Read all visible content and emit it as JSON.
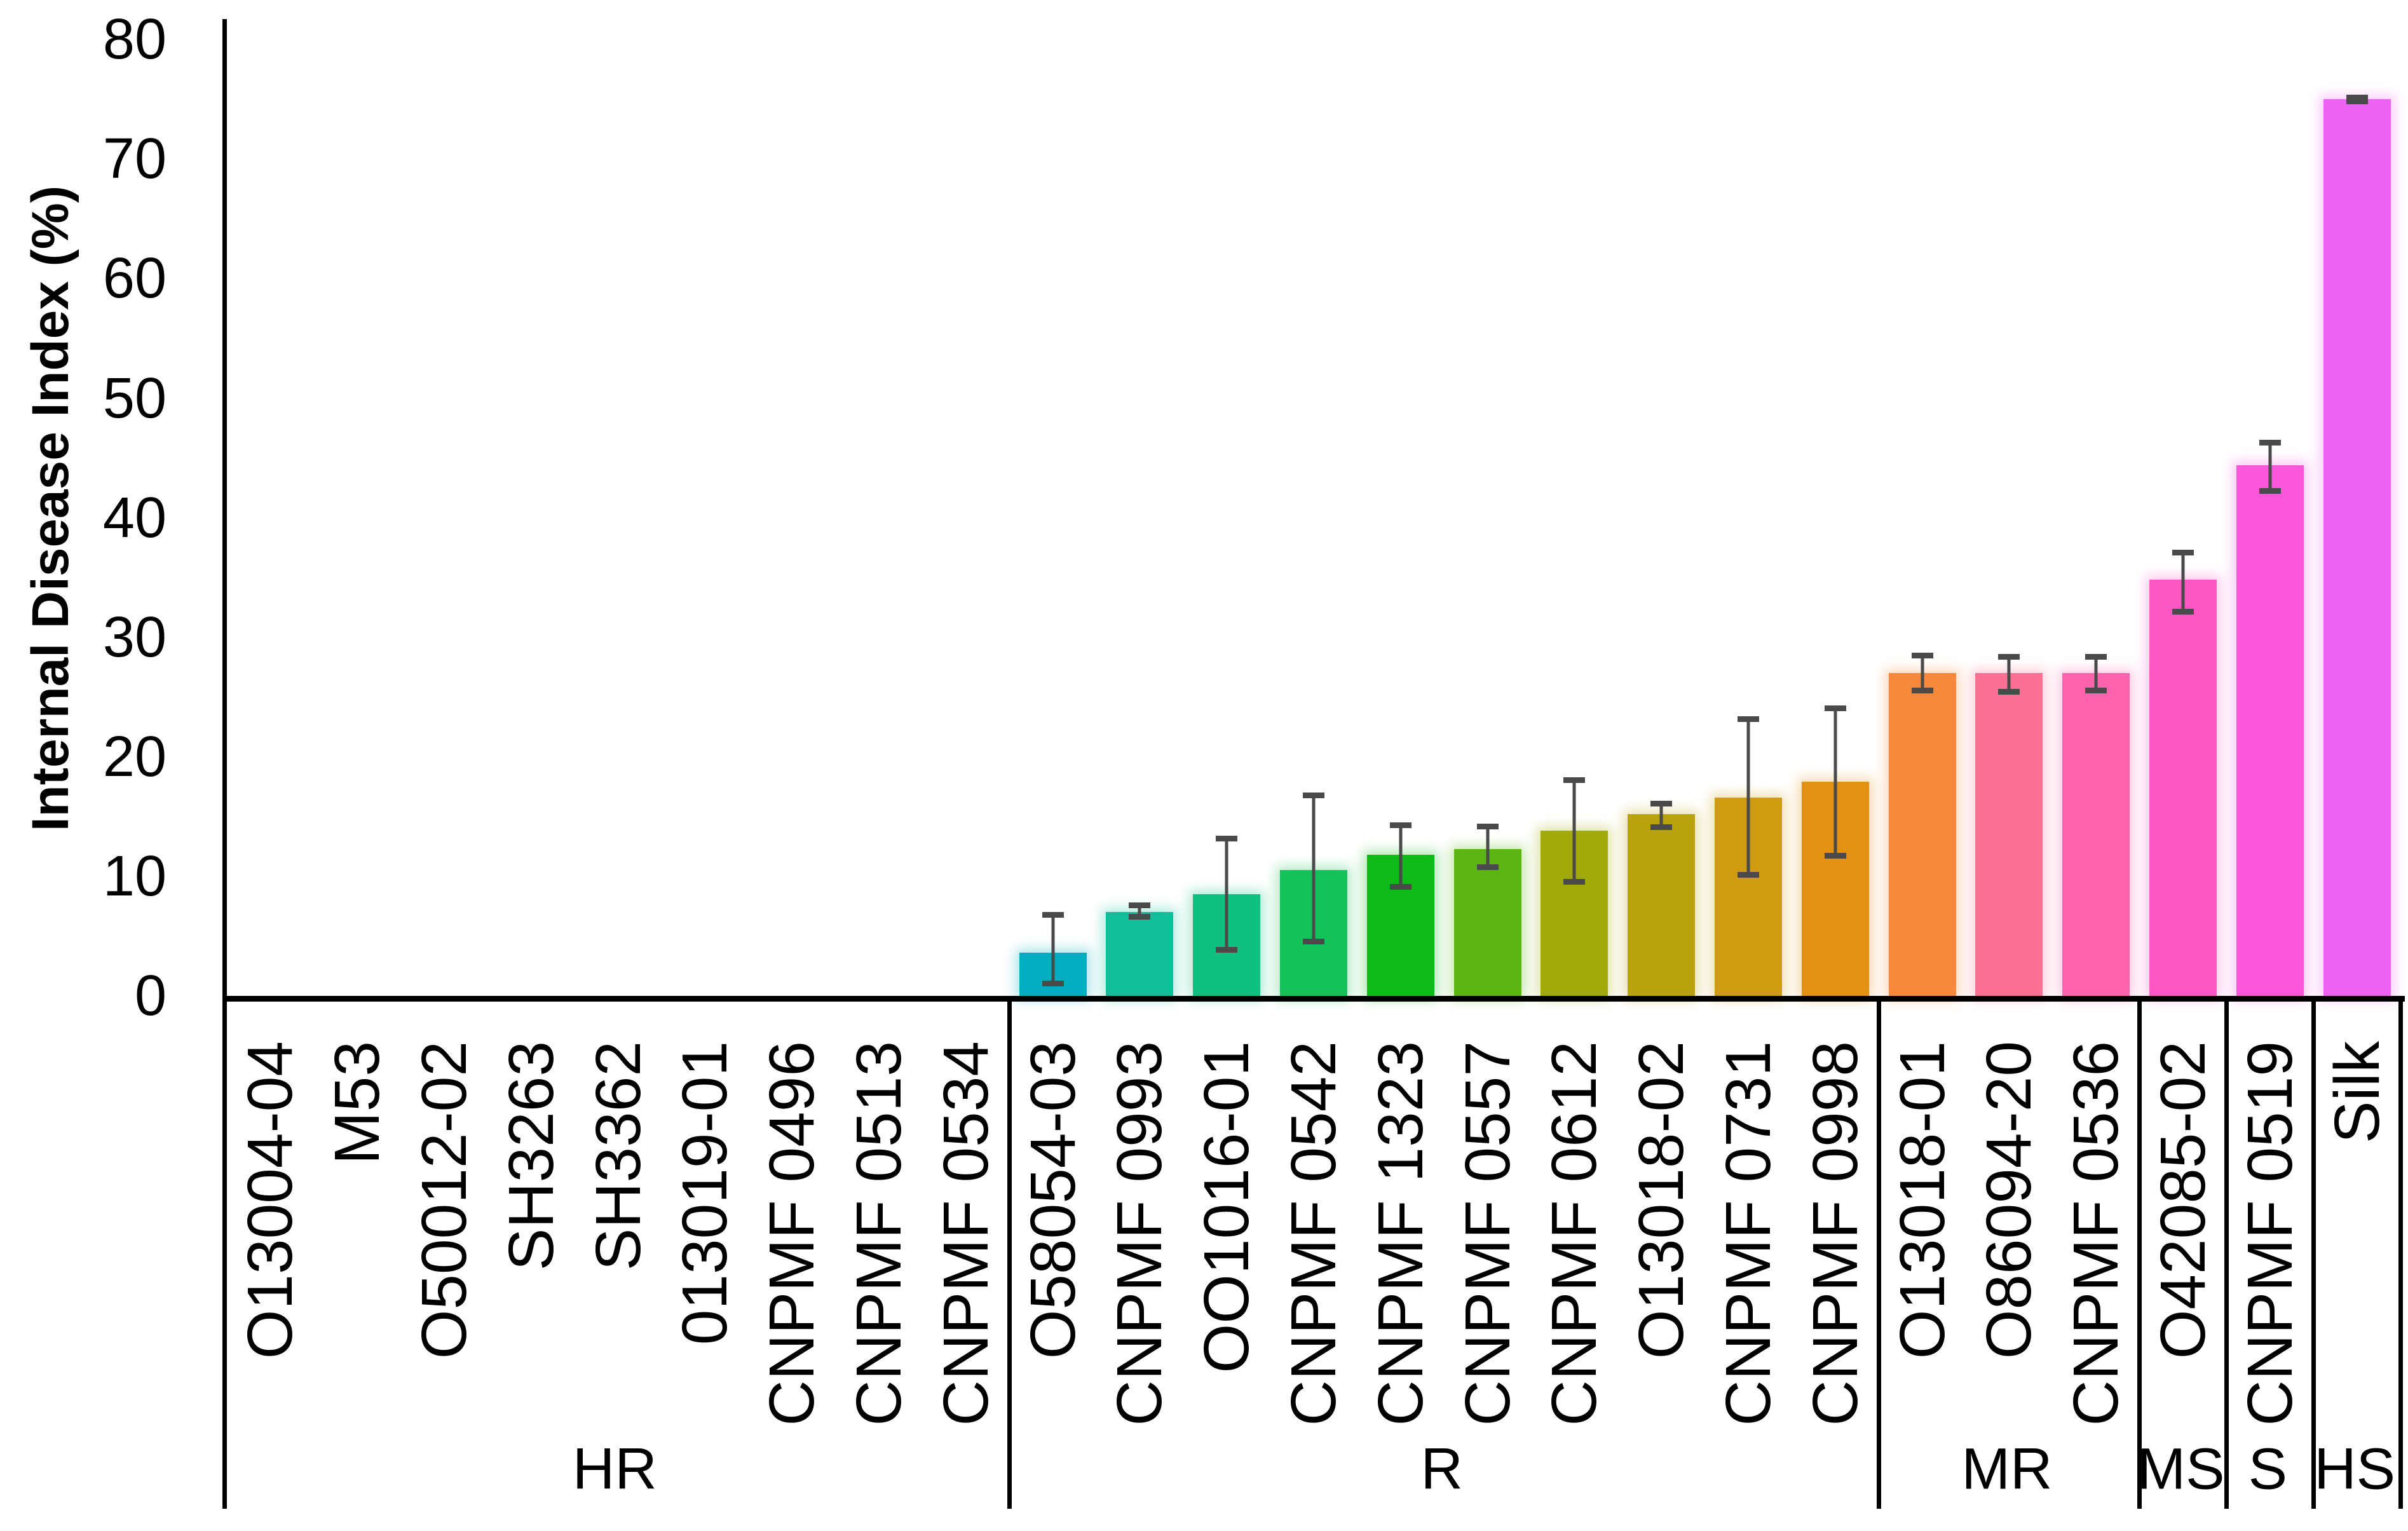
{
  "chart_data": {
    "type": "bar",
    "title": "",
    "ylabel": "Internal Disease Index (%)",
    "xlabel": "",
    "ylim": [
      0,
      80
    ],
    "yticks": [
      0,
      10,
      20,
      30,
      40,
      50,
      60,
      70,
      80
    ],
    "grid": false,
    "legend_position": "none",
    "background_color": "#ffffff",
    "axis_color": "#000000",
    "error_bar_color": "#4a4a4a",
    "categories": [
      "O13004-04",
      "M53",
      "O50012-02",
      "SH3263",
      "SH3362",
      "013019-01",
      "CNPMF 0496",
      "CNPMF 0513",
      "CNPMF 0534",
      "O58054-03",
      "CNPMF 0993",
      "OO1016-01",
      "CNPMF 0542",
      "CNPMF 1323",
      "CNPMF 0557",
      "CNPMF 0612",
      "O13018-02",
      "CNPMF 0731",
      "CNPMF 0998",
      "O13018-01",
      "O86094-20",
      "CNPMF 0536",
      "O42085-02",
      "CNPMF 0519",
      "Silk"
    ],
    "values": [
      0,
      0,
      0,
      0,
      0,
      0,
      0,
      0,
      0,
      3.6,
      7.0,
      8.5,
      10.5,
      11.8,
      12.3,
      13.8,
      15.2,
      16.6,
      17.9,
      27.0,
      27.0,
      27.0,
      34.8,
      44.4,
      75.0
    ],
    "error_low": [
      null,
      null,
      null,
      null,
      null,
      null,
      null,
      null,
      null,
      0.8,
      6.4,
      3.6,
      4.3,
      8.9,
      10.5,
      9.3,
      13.9,
      9.9,
      11.5,
      25.3,
      25.2,
      25.3,
      31.9,
      42.0,
      74.6
    ],
    "error_high": [
      null,
      null,
      null,
      null,
      null,
      null,
      null,
      null,
      null,
      7.0,
      7.8,
      13.4,
      17.0,
      14.5,
      14.4,
      18.3,
      16.3,
      23.4,
      24.3,
      28.7,
      28.6,
      28.6,
      37.3,
      46.5,
      75.4
    ],
    "bar_colors": [
      null,
      null,
      null,
      null,
      null,
      null,
      null,
      null,
      null,
      "#00AEC0",
      "#10BF99",
      "#0FC180",
      "#13C258",
      "#0CBB16",
      "#5CB611",
      "#A0AA0B",
      "#B8A30D",
      "#CF9B11",
      "#E39112",
      "#F8893C",
      "#FC7093",
      "#FD64AC",
      "#FB57C5",
      "#F956D9",
      "#EC63F3"
    ],
    "groups": [
      {
        "label": "HR",
        "count": 9
      },
      {
        "label": "R",
        "count": 10
      },
      {
        "label": "MR",
        "count": 3
      },
      {
        "label": "MS",
        "count": 1
      },
      {
        "label": "S",
        "count": 1
      },
      {
        "label": "HS",
        "count": 1
      }
    ]
  }
}
